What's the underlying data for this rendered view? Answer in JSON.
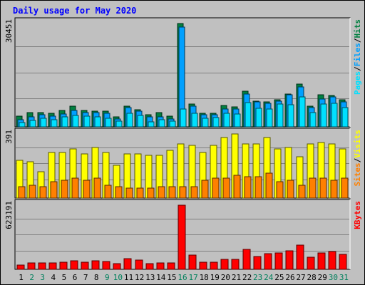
{
  "chart_data": {
    "type": "bar",
    "title": "Daily usage for May 2020",
    "x": [
      "1",
      "2",
      "3",
      "4",
      "5",
      "6",
      "7",
      "8",
      "9",
      "10",
      "11",
      "12",
      "13",
      "14",
      "15",
      "16",
      "17",
      "18",
      "19",
      "20",
      "21",
      "22",
      "23",
      "24",
      "25",
      "26",
      "27",
      "28",
      "29",
      "30",
      "31"
    ],
    "weekend_days": [
      "2",
      "3",
      "9",
      "10",
      "16",
      "17",
      "23",
      "24",
      "30",
      "31"
    ],
    "panels": [
      {
        "name": "hits",
        "ymax_label": "30451",
        "ymax": 30451,
        "right_label": [
          "Pages",
          "Files",
          "Hits"
        ],
        "series": [
          {
            "name": "Hits",
            "color": "#008040",
            "values": [
              3100,
              4100,
              4100,
              3900,
              4800,
              6000,
              4800,
              4600,
              4600,
              2900,
              6100,
              5100,
              3500,
              4100,
              3100,
              30451,
              6700,
              4000,
              4000,
              6200,
              5900,
              10500,
              7500,
              7300,
              8000,
              9700,
              12500,
              6100,
              9400,
              9300,
              8000
            ]
          },
          {
            "name": "Files",
            "color": "#00a0ff",
            "values": [
              2000,
              2900,
              3500,
              3100,
              3800,
              4900,
              4200,
              4100,
              4000,
              2300,
              5600,
              4600,
              2900,
              3000,
              2300,
              29300,
              6100,
              3600,
              3500,
              5200,
              5300,
              9700,
              7300,
              6900,
              7600,
              9400,
              11800,
              5600,
              8100,
              8800,
              7400
            ]
          },
          {
            "name": "Pages",
            "color": "#00e0ff",
            "values": [
              1300,
              1900,
              2500,
              2000,
              2900,
              3300,
              3100,
              2900,
              2600,
              1600,
              3900,
              3300,
              1500,
              2000,
              1600,
              5200,
              3900,
              2500,
              2700,
              3900,
              3800,
              7100,
              5500,
              5200,
              6700,
              6600,
              8800,
              4200,
              6700,
              7000,
              5600
            ]
          }
        ]
      },
      {
        "name": "visits",
        "ymax_label": "391",
        "ymax": 391,
        "right_label": [
          "Sites",
          "Visits"
        ],
        "series": [
          {
            "name": "Visits",
            "color": "#ffff00",
            "values": [
              230,
              220,
              160,
              280,
              280,
              300,
              270,
              310,
              280,
              200,
              270,
              270,
              260,
              260,
              290,
              330,
              320,
              280,
              320,
              370,
              390,
              330,
              330,
              370,
              300,
              310,
              250,
              330,
              340,
              330,
              300
            ]
          },
          {
            "name": "Sites",
            "color": "#ff8000",
            "values": [
              70,
              80,
              70,
              100,
              110,
              120,
              110,
              120,
              80,
              70,
              60,
              60,
              60,
              70,
              70,
              70,
              70,
              110,
              120,
              120,
              140,
              130,
              130,
              150,
              100,
              110,
              80,
              120,
              120,
              110,
              120
            ]
          }
        ]
      },
      {
        "name": "kbytes",
        "ymax_label": "623191",
        "ymax": 623191,
        "right_label": [
          "KBytes"
        ],
        "series": [
          {
            "name": "KBytes",
            "color": "#ff0000",
            "values": [
              45000,
              62000,
              60000,
              62000,
              72000,
              82000,
              72000,
              80000,
              78000,
              58000,
              105000,
              92000,
              58000,
              60000,
              62000,
              623191,
              140000,
              68000,
              68000,
              98000,
              100000,
              195000,
              128000,
              150000,
              160000,
              180000,
              235000,
              118000,
              160000,
              175000,
              145000
            ]
          }
        ]
      }
    ],
    "grid": true,
    "colors": {
      "background": "#c0c0c0",
      "plot": "#c0c0c0",
      "gridline": "#808080",
      "title": "#0000ff",
      "weekday": "#000000",
      "weekend": "#00805c"
    }
  }
}
